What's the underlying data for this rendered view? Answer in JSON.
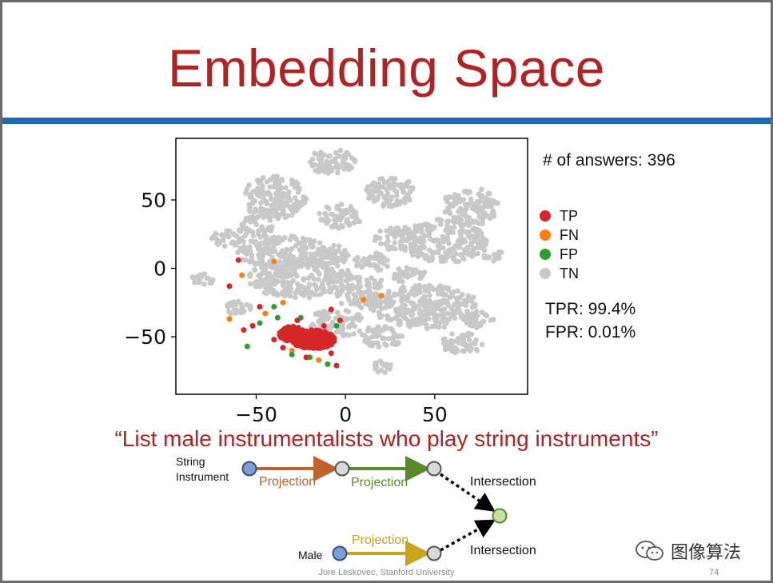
{
  "slide": {
    "title": "Embedding Space",
    "answers_text": "# of answers: 396",
    "legend": [
      {
        "label": "TP",
        "color": "#d62728"
      },
      {
        "label": "FN",
        "color": "#ff7f0e"
      },
      {
        "label": "FP",
        "color": "#2ca02c"
      },
      {
        "label": "TN",
        "color": "#c8c8c8"
      }
    ],
    "tpr": "TPR: 99.4%",
    "fpr": "FPR: 0.01%",
    "query": "“List male instrumentalists who play string instruments”",
    "footer": "Jure Leskovec, Stanford University",
    "page_number": "74",
    "watermark": "图像算法",
    "watermark_icon": "wechat-icon"
  },
  "chart_data": {
    "type": "scatter",
    "title": "",
    "xlabel": "",
    "ylabel": "",
    "xlim": [
      -95,
      102
    ],
    "ylim": [
      -92,
      95
    ],
    "x_ticks": [
      "−50",
      "0",
      "50"
    ],
    "x_tick_values": [
      -50,
      0,
      50
    ],
    "y_ticks": [
      "50",
      "0",
      "−50"
    ],
    "y_tick_values": [
      50,
      0,
      -50
    ],
    "grid": false,
    "series": [
      {
        "name": "TN",
        "color": "#c8c8c8",
        "clusters": [
          [
            -8,
            78,
            14,
            9
          ],
          [
            -40,
            52,
            18,
            16
          ],
          [
            25,
            57,
            14,
            12
          ],
          [
            -3,
            38,
            12,
            9
          ],
          [
            70,
            45,
            16,
            14
          ],
          [
            55,
            20,
            24,
            16
          ],
          [
            28,
            22,
            12,
            9
          ],
          [
            -65,
            22,
            10,
            6
          ],
          [
            -35,
            12,
            26,
            12
          ],
          [
            -10,
            10,
            14,
            8
          ],
          [
            15,
            5,
            10,
            7
          ],
          [
            -25,
            -8,
            30,
            14
          ],
          [
            10,
            -18,
            16,
            12
          ],
          [
            45,
            -28,
            30,
            16
          ],
          [
            82,
            10,
            6,
            5
          ],
          [
            -80,
            -8,
            6,
            5
          ],
          [
            20,
            -50,
            12,
            8
          ],
          [
            -5,
            -40,
            16,
            10
          ],
          [
            75,
            -38,
            8,
            6
          ],
          [
            65,
            -55,
            12,
            8
          ],
          [
            20,
            -72,
            6,
            5
          ],
          [
            -50,
            30,
            10,
            8
          ],
          [
            -60,
            -30,
            8,
            6
          ],
          [
            35,
            -5,
            10,
            6
          ]
        ]
      },
      {
        "name": "FN",
        "color": "#ff7f0e",
        "points": [
          [
            -40,
            5
          ],
          [
            -58,
            -5
          ],
          [
            -35,
            -25
          ],
          [
            -45,
            -33
          ],
          [
            -65,
            -37
          ],
          [
            10,
            -23
          ],
          [
            20,
            -20
          ],
          [
            -25,
            -48
          ],
          [
            -30,
            -60
          ],
          [
            -15,
            -67
          ]
        ]
      },
      {
        "name": "FP",
        "color": "#2ca02c",
        "points": [
          [
            -48,
            -40
          ],
          [
            -38,
            -36
          ],
          [
            -28,
            -48
          ],
          [
            -35,
            -58
          ],
          [
            -55,
            -57
          ],
          [
            -30,
            -63
          ],
          [
            -10,
            -70
          ],
          [
            -5,
            -42
          ],
          [
            -40,
            -28
          ],
          [
            -20,
            -65
          ],
          [
            -25,
            -36
          ]
        ]
      },
      {
        "name": "TP",
        "color": "#d62728",
        "clusters": [
          [
            -18,
            -52,
            12,
            7
          ],
          [
            -30,
            -48,
            7,
            6
          ]
        ],
        "points": [
          [
            -60,
            6
          ],
          [
            -65,
            -13
          ],
          [
            -48,
            -28
          ],
          [
            -52,
            -42
          ],
          [
            -57,
            -45
          ],
          [
            -35,
            -58
          ],
          [
            -40,
            -52
          ],
          [
            -5,
            -71
          ],
          [
            -3,
            -38
          ],
          [
            -8,
            -30
          ],
          [
            -12,
            -42
          ],
          [
            -27,
            -38
          ],
          [
            -34,
            -44
          ],
          [
            -8,
            -62
          ],
          [
            -22,
            -65
          ]
        ]
      }
    ]
  },
  "diagram": {
    "string_label_1": "String",
    "string_label_2": "Instrument",
    "male_label": "Male",
    "projection_1": "Projection",
    "projection_2": "Projection",
    "projection_3": "Projection",
    "intersection_1": "Intersection",
    "intersection_2": "Intersection",
    "colors": {
      "arrow_orange": "#c0622b",
      "arrow_green": "#5a8a2a",
      "arrow_gold": "#c9a31a",
      "anchor": "#7b9ed6",
      "node": "#d9d9d9",
      "target": "#c5e3a3"
    }
  }
}
